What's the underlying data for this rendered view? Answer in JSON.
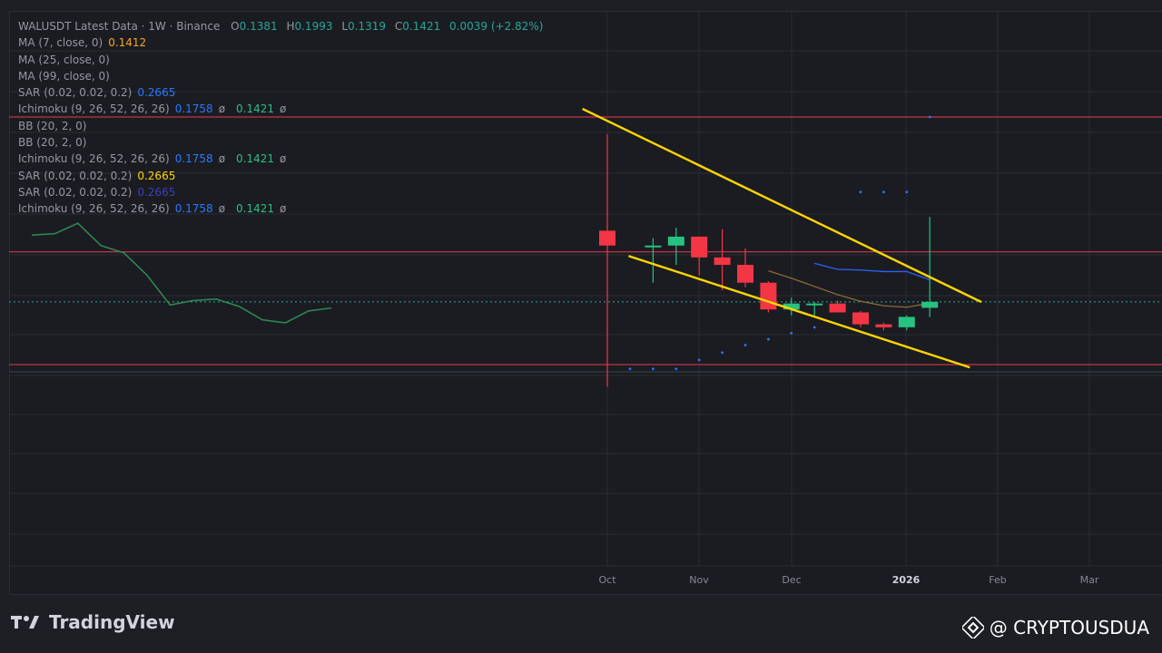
{
  "legend": {
    "header": {
      "symbol": "WALUSDT Latest Data · 1W · Binance",
      "o_label": "O",
      "o": "0.1381",
      "h_label": "H",
      "h": "0.1993",
      "l_label": "L",
      "l": "0.1319",
      "c_label": "C",
      "c": "0.1421",
      "change": "0.0039 (+2.82%)"
    },
    "rows": [
      {
        "label": "MA (7, close, 0)",
        "values": [
          "0.1412"
        ],
        "colors": [
          "#f5a623"
        ]
      },
      {
        "label": "MA (25, close, 0)",
        "values": [],
        "colors": []
      },
      {
        "label": "MA (99, close, 0)",
        "values": [],
        "colors": []
      },
      {
        "label": "SAR (0.02, 0.02, 0.2)",
        "values": [
          "0.2665"
        ],
        "colors": [
          "#2979ff"
        ]
      },
      {
        "label": "Ichimoku (9, 26, 52, 26, 26)",
        "values": [
          "0.1758",
          "0.1421"
        ],
        "colors": [
          "#2979ff",
          "#2ebd85"
        ],
        "sep": "ø"
      },
      {
        "label": "BB (20, 2, 0)",
        "values": [],
        "colors": []
      },
      {
        "label": "BB (20, 2, 0)",
        "values": [],
        "colors": []
      },
      {
        "label": "Ichimoku (9, 26, 52, 26, 26)",
        "values": [
          "0.1758",
          "0.1421"
        ],
        "colors": [
          "#2979ff",
          "#2ebd85"
        ],
        "sep": "ø"
      },
      {
        "label": "SAR (0.02, 0.02, 0.2)",
        "values": [
          "0.2665"
        ],
        "colors": [
          "#ffd600"
        ]
      },
      {
        "label": "SAR (0.02, 0.02, 0.2)",
        "values": [
          "0.2665"
        ],
        "colors": [
          "#3f3fb8"
        ]
      },
      {
        "label": "Ichimoku (9, 26, 52, 26, 26)",
        "values": [
          "0.1758",
          "0.1421"
        ],
        "colors": [
          "#2979ff",
          "#2ebd85"
        ],
        "sep": "ø"
      }
    ]
  },
  "chart_data": {
    "type": "candlestick",
    "x_ticks": [
      "Oct",
      "Nov",
      "Dec",
      "2026",
      "Feb",
      "Mar"
    ],
    "bold_tick": "2026",
    "candles": [
      {
        "o": 0.19,
        "h": 0.255,
        "l": 0.085,
        "c": 0.18,
        "dir": "down"
      },
      {
        "o": 0.18,
        "h": 0.185,
        "l": 0.155,
        "c": 0.18,
        "dir": "up"
      },
      {
        "o": 0.18,
        "h": 0.192,
        "l": 0.167,
        "c": 0.186,
        "dir": "up"
      },
      {
        "o": 0.186,
        "h": 0.186,
        "l": 0.16,
        "c": 0.172,
        "dir": "down"
      },
      {
        "o": 0.172,
        "h": 0.191,
        "l": 0.15,
        "c": 0.167,
        "dir": "down"
      },
      {
        "o": 0.167,
        "h": 0.178,
        "l": 0.152,
        "c": 0.155,
        "dir": "down"
      },
      {
        "o": 0.155,
        "h": 0.156,
        "l": 0.135,
        "c": 0.137,
        "dir": "down"
      },
      {
        "o": 0.137,
        "h": 0.145,
        "l": 0.133,
        "c": 0.141,
        "dir": "up"
      },
      {
        "o": 0.141,
        "h": 0.142,
        "l": 0.133,
        "c": 0.141,
        "dir": "up"
      },
      {
        "o": 0.141,
        "h": 0.143,
        "l": 0.135,
        "c": 0.135,
        "dir": "down"
      },
      {
        "o": 0.135,
        "h": 0.136,
        "l": 0.125,
        "c": 0.127,
        "dir": "down"
      },
      {
        "o": 0.127,
        "h": 0.128,
        "l": 0.123,
        "c": 0.125,
        "dir": "down"
      },
      {
        "o": 0.125,
        "h": 0.133,
        "l": 0.123,
        "c": 0.132,
        "dir": "up"
      },
      {
        "o": 0.1381,
        "h": 0.1993,
        "l": 0.1319,
        "c": 0.1421,
        "dir": "up"
      }
    ],
    "ma7": [
      null,
      null,
      null,
      null,
      null,
      null,
      0.163,
      0.158,
      0.1525,
      0.147,
      0.1425,
      0.1395,
      0.1385,
      0.1412
    ],
    "ichimoku_base": [
      null,
      null,
      null,
      null,
      null,
      null,
      null,
      null,
      0.168,
      0.164,
      0.1635,
      0.1625,
      0.1625,
      0.157
    ],
    "sar_dots": [
      0.097,
      0.097,
      0.097,
      0.103,
      0.108,
      0.113,
      0.117,
      0.121,
      0.125,
      null,
      0.216,
      0.216,
      0.216,
      0.2665
    ],
    "lagging_line": [
      [
        0,
        0.187
      ],
      [
        1,
        0.188
      ],
      [
        2,
        0.195
      ],
      [
        3,
        0.18
      ],
      [
        4,
        0.175
      ],
      [
        5,
        0.16
      ],
      [
        6,
        0.14
      ],
      [
        7,
        0.143
      ],
      [
        8,
        0.144
      ],
      [
        9,
        0.139
      ],
      [
        10,
        0.13
      ],
      [
        11,
        0.128
      ],
      [
        12,
        0.136
      ],
      [
        13,
        0.138
      ]
    ],
    "horizontal_levels": [
      0.2665,
      0.1758,
      0.0999
    ],
    "current_price": 0.1421,
    "trend_lines": [
      {
        "from": [
          -1.0,
          0.272
        ],
        "to": [
          15.0,
          0.142
        ],
        "color": "#ffd600"
      },
      {
        "from": [
          1.0,
          0.173
        ],
        "to": [
          14.5,
          0.098
        ],
        "color": "#ffd600"
      }
    ],
    "grid": true
  },
  "branding": {
    "logo_text": "TradingView",
    "watermark": "@ CRYPTOUSDUA"
  }
}
